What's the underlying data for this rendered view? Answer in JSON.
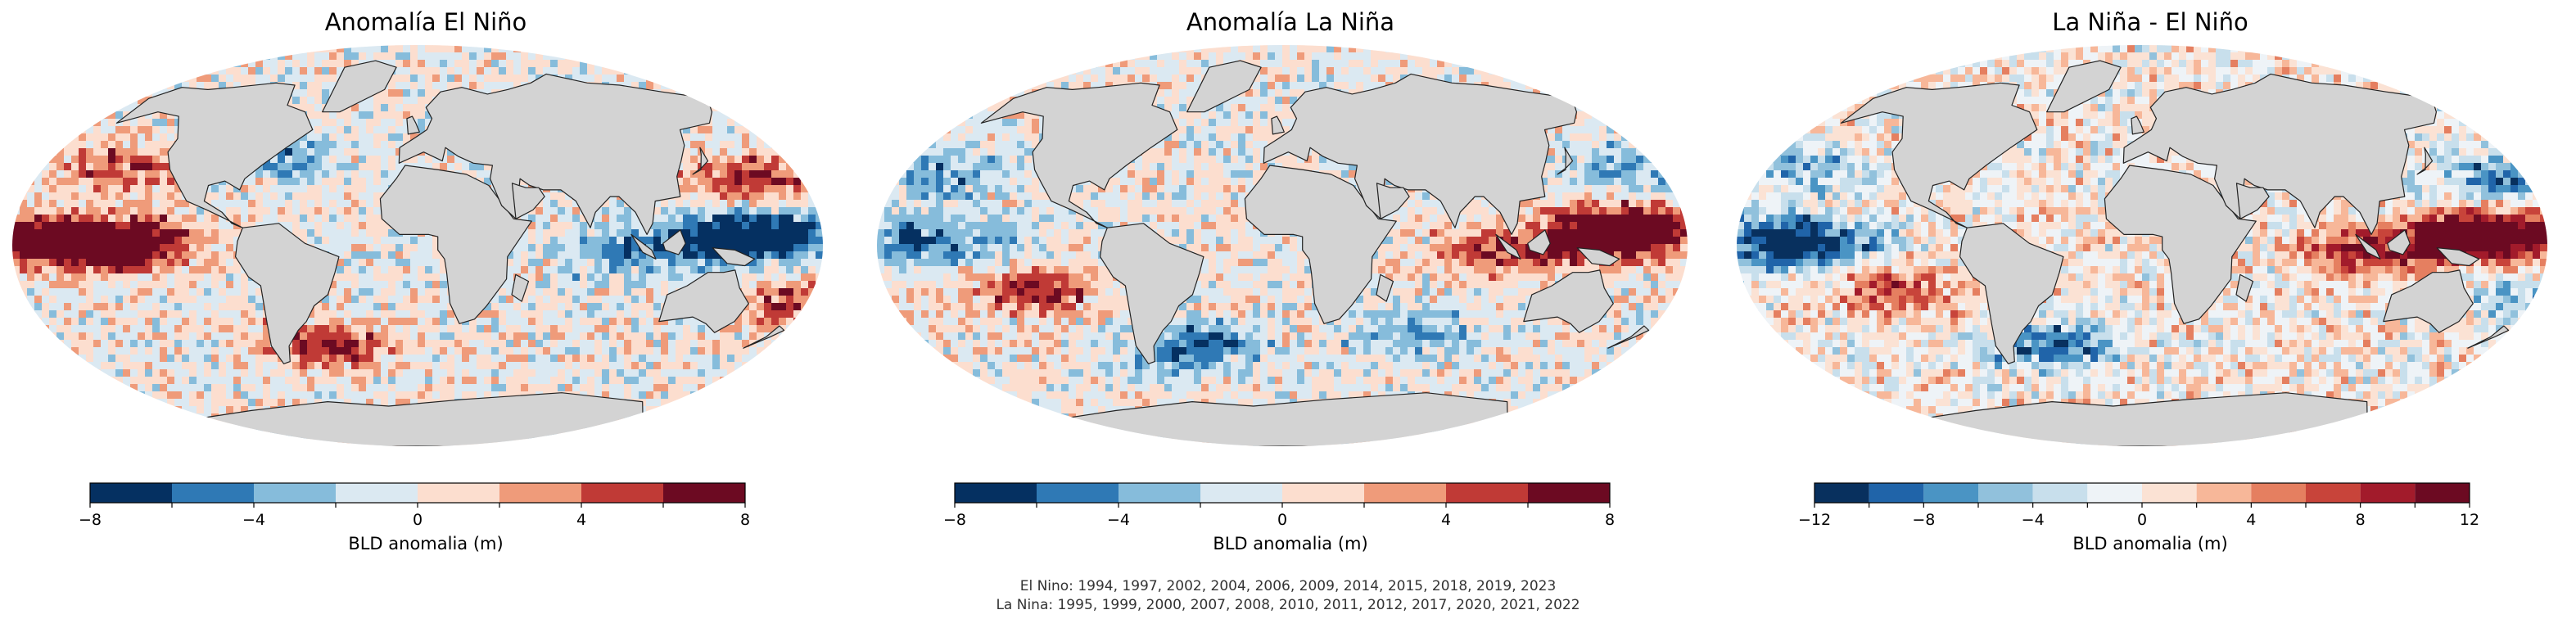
{
  "chart_data": [
    {
      "type": "heatmap",
      "title": "Anomalía El Niño",
      "colorbar": {
        "label": "BLD anomalia (m)",
        "range": [
          -8,
          8
        ],
        "boundaries": [
          -8,
          -6,
          -4,
          -2,
          0,
          2,
          4,
          6,
          8
        ],
        "ticks": [
          -8,
          -4,
          0,
          4,
          8
        ],
        "tick_labels": [
          "−8",
          "−4",
          "0",
          "4",
          "8"
        ],
        "colors": [
          "#053061",
          "#2f79b5",
          "#86bcdb",
          "#dbe9f2",
          "#fcdecf",
          "#ef9b7a",
          "#c03a36",
          "#6c0a22"
        ]
      },
      "regions": [
        {
          "lon": -170,
          "lat": 3,
          "value": 7.5
        },
        {
          "lon": -145,
          "lat": 0,
          "value": 7
        },
        {
          "lon": -120,
          "lat": 2,
          "value": 6
        },
        {
          "lon": 130,
          "lat": 2,
          "value": -7.5
        },
        {
          "lon": 160,
          "lat": 5,
          "value": -7
        },
        {
          "lon": 90,
          "lat": -2,
          "value": -4
        },
        {
          "lon": 150,
          "lat": 30,
          "value": 6
        },
        {
          "lon": 170,
          "lat": -25,
          "value": 5
        },
        {
          "lon": -40,
          "lat": -45,
          "value": 6
        },
        {
          "lon": -60,
          "lat": 40,
          "value": -4
        },
        {
          "lon": -130,
          "lat": 35,
          "value": 5
        }
      ]
    },
    {
      "type": "heatmap",
      "title": "Anomalía La Niña",
      "colorbar": {
        "label": "BLD anomalia (m)",
        "range": [
          -8,
          8
        ],
        "boundaries": [
          -8,
          -6,
          -4,
          -2,
          0,
          2,
          4,
          6,
          8
        ],
        "ticks": [
          -8,
          -4,
          0,
          4,
          8
        ],
        "tick_labels": [
          "−8",
          "−4",
          "0",
          "4",
          "8"
        ],
        "colors": [
          "#053061",
          "#2f79b5",
          "#86bcdb",
          "#dbe9f2",
          "#fcdecf",
          "#ef9b7a",
          "#c03a36",
          "#6c0a22"
        ]
      },
      "regions": [
        {
          "lon": -170,
          "lat": 2,
          "value": -4
        },
        {
          "lon": -140,
          "lat": 0,
          "value": -3
        },
        {
          "lon": 140,
          "lat": 3,
          "value": 8
        },
        {
          "lon": 160,
          "lat": 8,
          "value": 7.5
        },
        {
          "lon": 95,
          "lat": -3,
          "value": 5
        },
        {
          "lon": -110,
          "lat": -20,
          "value": 6
        },
        {
          "lon": -40,
          "lat": -45,
          "value": -6
        },
        {
          "lon": 60,
          "lat": -40,
          "value": -4
        },
        {
          "lon": 150,
          "lat": 35,
          "value": -3
        },
        {
          "lon": -150,
          "lat": 30,
          "value": -4
        }
      ]
    },
    {
      "type": "heatmap",
      "title": "La Niña - El Niño",
      "colorbar": {
        "label": "BLD anomalia (m)",
        "range": [
          -12,
          12
        ],
        "boundaries": [
          -12,
          -10,
          -8,
          -6,
          -4,
          -2,
          0,
          2,
          4,
          6,
          8,
          10,
          12
        ],
        "ticks": [
          -12,
          -8,
          -4,
          0,
          4,
          8,
          12
        ],
        "tick_labels": [
          "−12",
          "−8",
          "−4",
          "0",
          "4",
          "8",
          "12"
        ],
        "colors": [
          "#08305e",
          "#2064a9",
          "#4a94c4",
          "#91c1dc",
          "#c8dfec",
          "#eef3f7",
          "#fbe2d4",
          "#f7b799",
          "#e57f60",
          "#c8443a",
          "#a21b2b",
          "#6c0a22"
        ]
      },
      "regions": [
        {
          "lon": -165,
          "lat": 2,
          "value": -10
        },
        {
          "lon": -140,
          "lat": 0,
          "value": -8
        },
        {
          "lon": 140,
          "lat": 3,
          "value": 12
        },
        {
          "lon": 165,
          "lat": 6,
          "value": 11
        },
        {
          "lon": 95,
          "lat": -3,
          "value": 8
        },
        {
          "lon": -110,
          "lat": -20,
          "value": 7
        },
        {
          "lon": -40,
          "lat": -45,
          "value": -9
        },
        {
          "lon": -150,
          "lat": 35,
          "value": -6
        },
        {
          "lon": 160,
          "lat": 30,
          "value": -8
        },
        {
          "lon": 170,
          "lat": -25,
          "value": -5
        }
      ]
    }
  ],
  "footnote": {
    "el_nino": "El Nino: 1994, 1997, 2002, 2004, 2006, 2009, 2014, 2015, 2018, 2019, 2023",
    "la_nina": "La Nina: 1995, 1999, 2000, 2007, 2008, 2010, 2011, 2012, 2017, 2020, 2021, 2022"
  },
  "colors": {
    "land": "#d3d3d3",
    "coastline": "#222222",
    "ocean_neutral": "#f5f2f0"
  }
}
